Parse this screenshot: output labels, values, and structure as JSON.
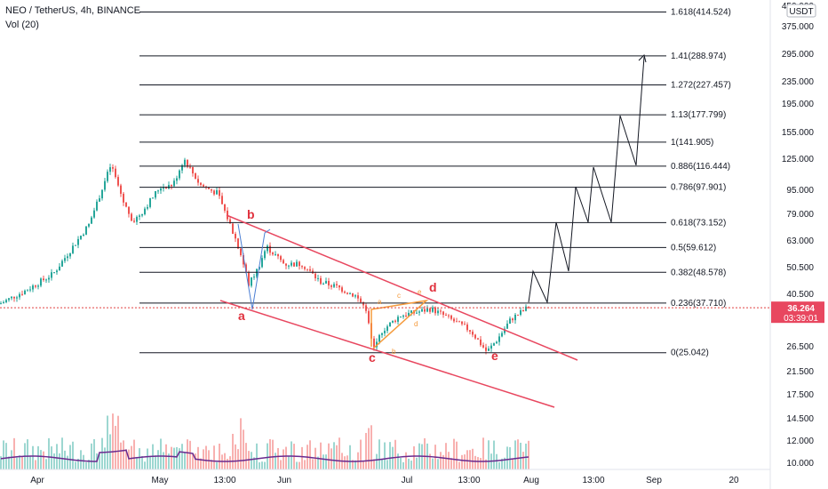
{
  "header": {
    "symbol_line": "NEO / TetherUS, 4h, BINANCE",
    "volume_line": "Vol (20)"
  },
  "chart_data": {
    "type": "candlestick",
    "price_scale": "log",
    "currency_label": "USDT",
    "y_ticks": [
      "450.000",
      "375.000",
      "295.000",
      "235.000",
      "195.000",
      "155.000",
      "125.000",
      "95.000",
      "79.000",
      "63.000",
      "50.500",
      "40.500",
      "26.500",
      "21.500",
      "17.500",
      "14.500",
      "12.000",
      "10.000"
    ],
    "x_ticks": [
      "Apr",
      "May",
      "13:00",
      "Jun",
      "Jul",
      "13:00",
      "Aug",
      "13:00",
      "Sep",
      "20"
    ],
    "last_price": "36.264",
    "countdown": "03:39:01",
    "fib_levels": [
      {
        "label": "1.618(414.524)",
        "value": 414.524
      },
      {
        "label": "1.41(288.974)",
        "value": 288.974
      },
      {
        "label": "1.272(227.457)",
        "value": 227.457
      },
      {
        "label": "1.13(177.799)",
        "value": 177.799
      },
      {
        "label": "1(141.905)",
        "value": 141.905
      },
      {
        "label": "0.886(116.444)",
        "value": 116.444
      },
      {
        "label": "0.786(97.901)",
        "value": 97.901
      },
      {
        "label": "0.618(73.152)",
        "value": 73.152
      },
      {
        "label": "0.5(59.612)",
        "value": 59.612
      },
      {
        "label": "0.382(48.578)",
        "value": 48.578
      },
      {
        "label": "0.236(37.710)",
        "value": 37.71
      },
      {
        "label": "0(25.042)",
        "value": 25.042
      }
    ],
    "wave_labels": [
      "a",
      "b",
      "c",
      "d",
      "e"
    ],
    "sub_wave_labels": [
      "a",
      "b",
      "c",
      "d",
      "e"
    ],
    "colors": {
      "up": "#26a69a",
      "down": "#ef5350",
      "channel": "#e8475f",
      "triangle": "#f59a3b",
      "volume_ma": "#6a2a8f",
      "projection": "#131722",
      "price_line": "#e04040"
    }
  }
}
